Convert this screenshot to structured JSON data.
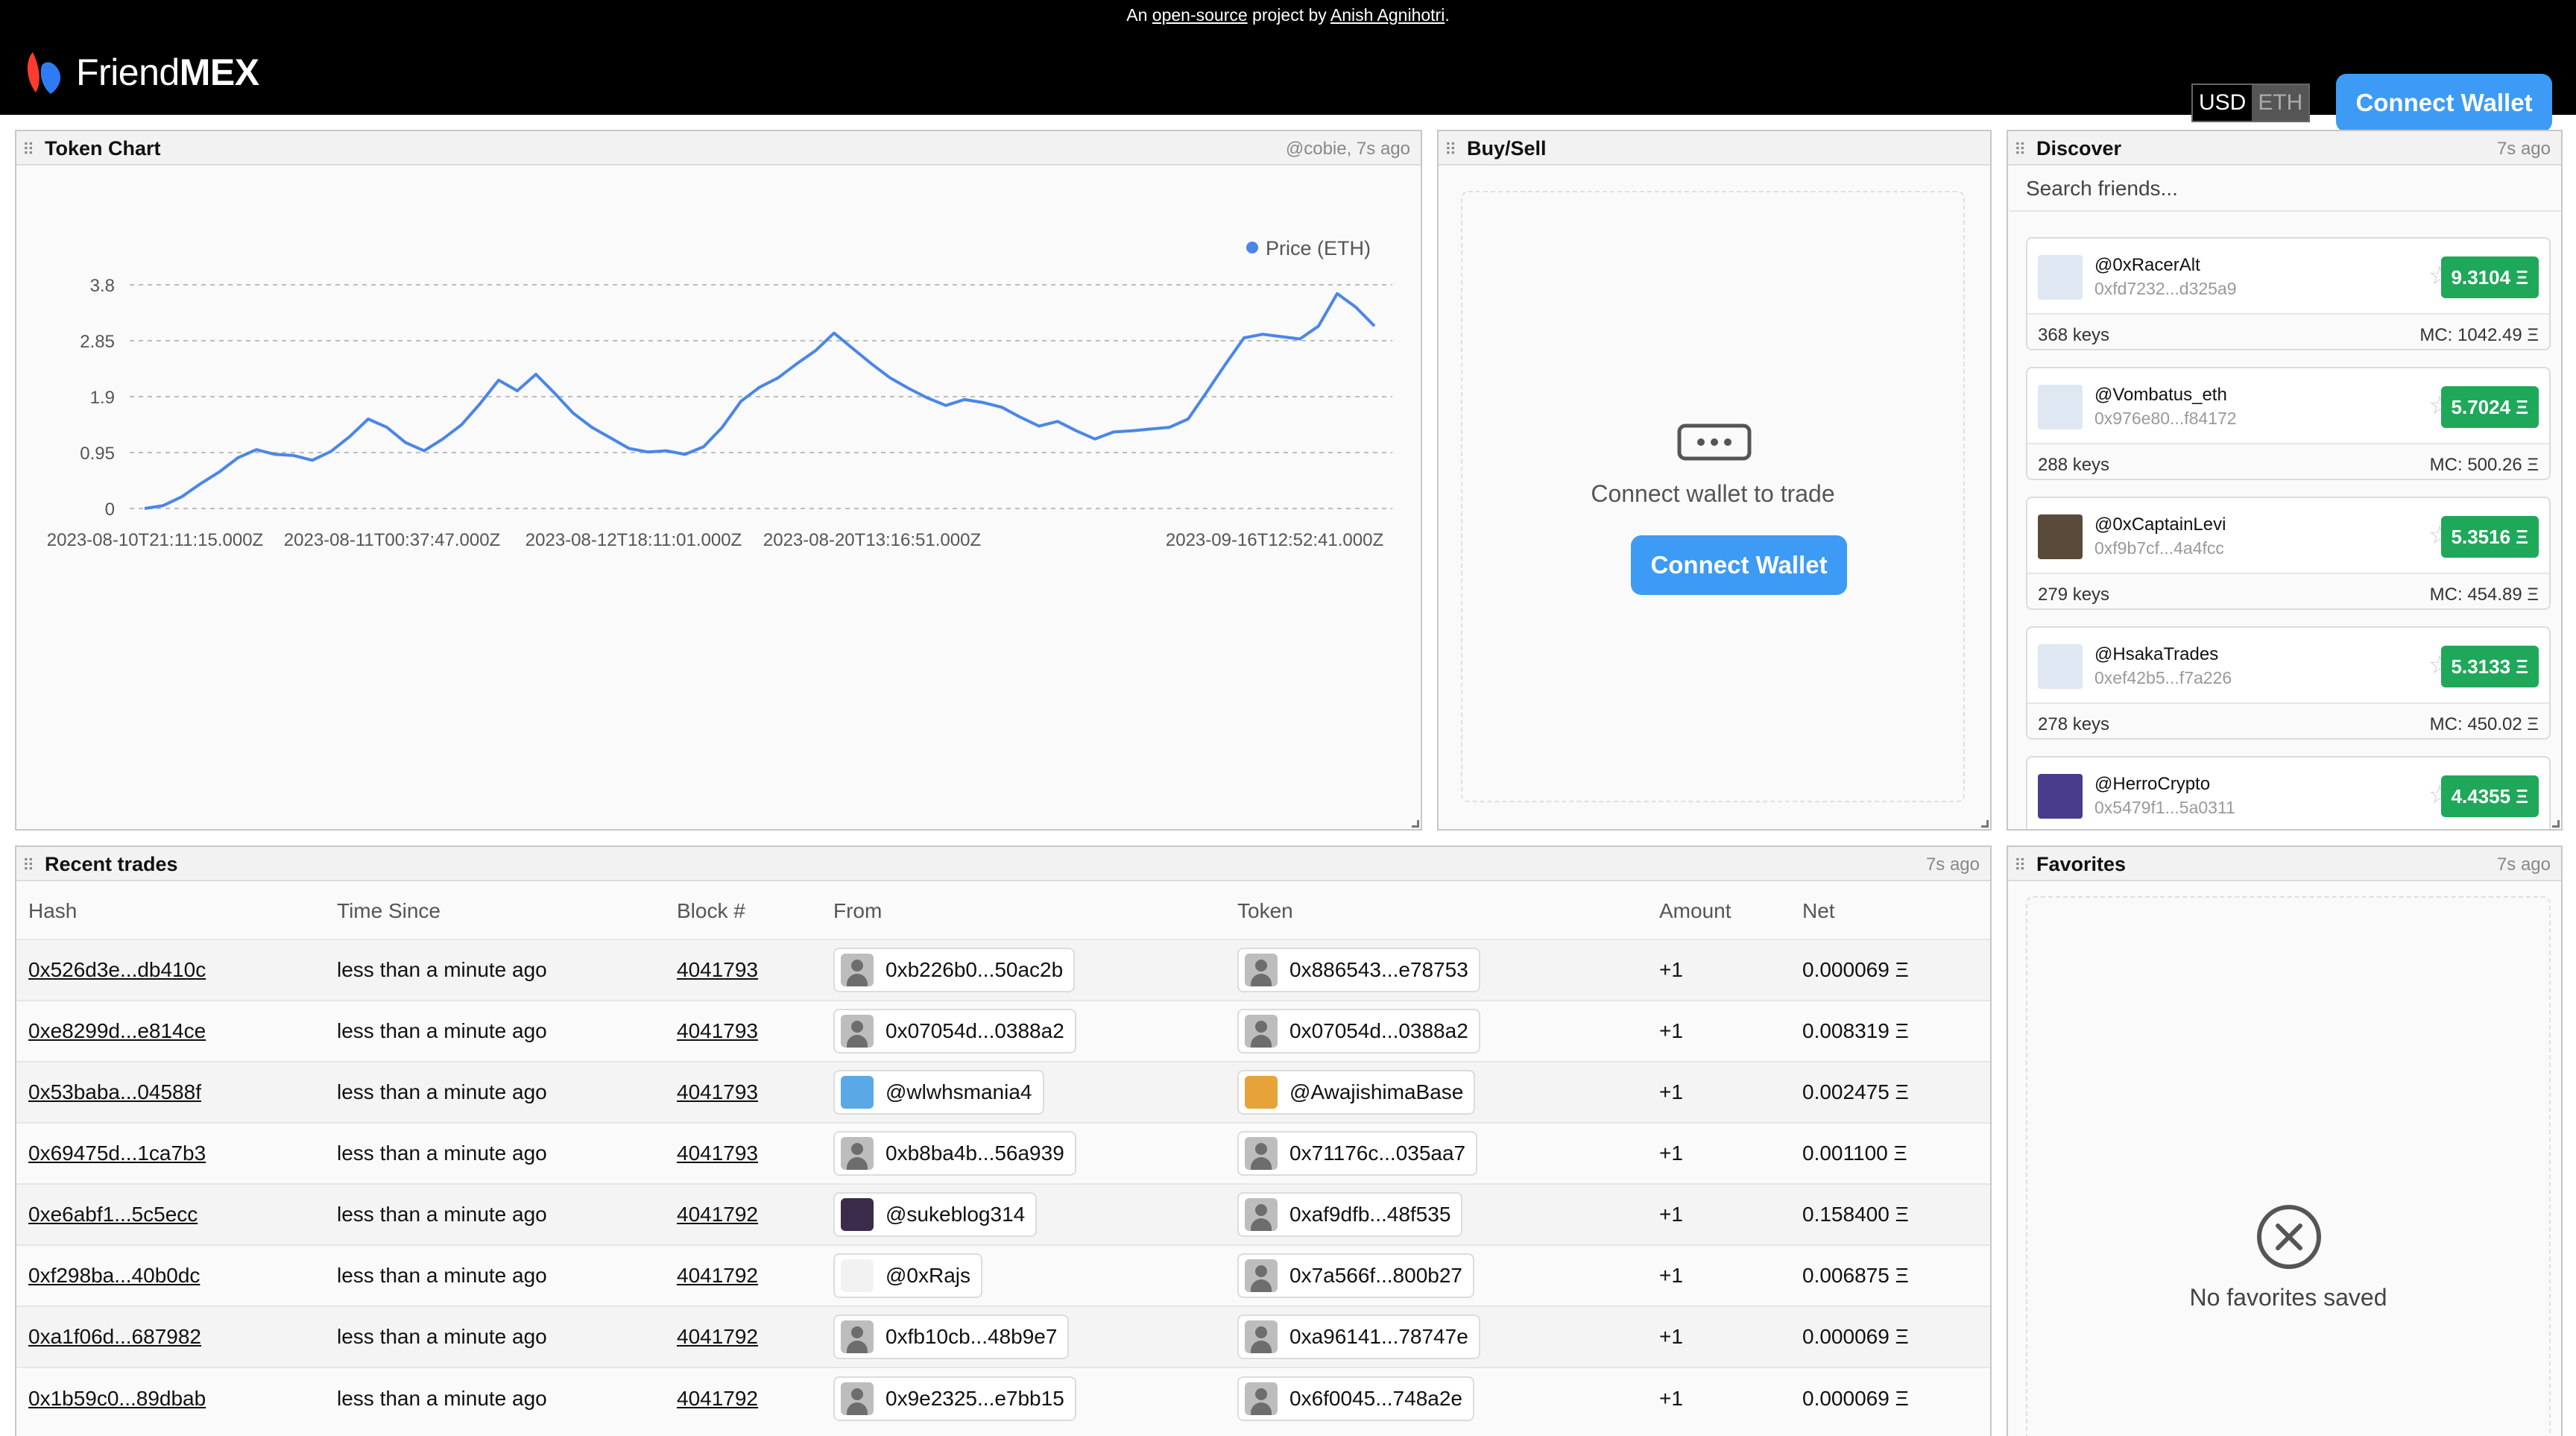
{
  "banner": {
    "prefix": "An ",
    "link1": "open-source",
    "middle": " project by ",
    "link2": "Anish Agnihotri",
    "suffix": "."
  },
  "nav": {
    "logo_light": "Friend",
    "logo_bold": "MEX",
    "currency_usd": "USD",
    "currency_eth": "ETH",
    "connect_label": "Connect Wallet"
  },
  "token_chart": {
    "title": "Token Chart",
    "meta": "@cobie, 7s ago"
  },
  "chart_data": {
    "type": "line",
    "series": [
      {
        "name": "Price (ETH)",
        "color": "#4a86e8",
        "values": [
          0.0,
          0.05,
          0.2,
          0.42,
          0.62,
          0.86,
          1.0,
          0.92,
          0.9,
          0.82,
          0.97,
          1.22,
          1.52,
          1.38,
          1.12,
          0.98,
          1.18,
          1.42,
          1.78,
          2.18,
          2.0,
          2.28,
          1.96,
          1.62,
          1.38,
          1.2,
          1.02,
          0.96,
          0.98,
          0.92,
          1.05,
          1.38,
          1.82,
          2.06,
          2.22,
          2.46,
          2.68,
          2.98,
          2.72,
          2.46,
          2.22,
          2.04,
          1.88,
          1.75,
          1.85,
          1.8,
          1.72,
          1.55,
          1.4,
          1.48,
          1.32,
          1.18,
          1.3,
          1.32,
          1.35,
          1.38,
          1.52,
          1.98,
          2.45,
          2.9,
          2.96,
          2.92,
          2.88,
          3.1,
          3.65,
          3.42,
          3.1
        ]
      }
    ],
    "x_tick_labels": [
      "2023-08-10T21:11:15.000Z",
      "2023-08-11T00:37:47.000Z",
      "2023-08-12T18:11:01.000Z",
      "2023-08-20T13:16:51.000Z",
      "2023-09-16T12:52:41.000Z"
    ],
    "y_ticks": [
      0,
      0.95,
      1.9,
      2.85,
      3.8
    ],
    "y_tick_labels": [
      "0",
      "0.95",
      "1.9",
      "2.85",
      "3.8"
    ],
    "ylim": [
      0,
      3.8
    ],
    "grid": true,
    "legend": "top-right",
    "title": "",
    "xlabel": "",
    "ylabel": ""
  },
  "buysell": {
    "title": "Buy/Sell",
    "message": "Connect wallet to trade",
    "connect_label": "Connect Wallet"
  },
  "discover": {
    "title": "Discover",
    "meta": "7s ago",
    "search_placeholder": "Search friends...",
    "friends": [
      {
        "name": "@0xRacerAlt",
        "address": "0xfd7232...d325a9",
        "price": "9.3104 Ξ",
        "keys": "368 keys",
        "mc": "MC: 1042.49 Ξ",
        "avatar_color": "#dfe7f2"
      },
      {
        "name": "@Vombatus_eth",
        "address": "0x976e80...f84172",
        "price": "5.7024 Ξ",
        "keys": "288 keys",
        "mc": "MC: 500.26 Ξ",
        "avatar_color": "#dfe7f2"
      },
      {
        "name": "@0xCaptainLevi",
        "address": "0xf9b7cf...4a4fcc",
        "price": "5.3516 Ξ",
        "keys": "279 keys",
        "mc": "MC: 454.89 Ξ",
        "avatar_color": "#5a4a3a"
      },
      {
        "name": "@HsakaTrades",
        "address": "0xef42b5...f7a226",
        "price": "5.3133 Ξ",
        "keys": "278 keys",
        "mc": "MC: 450.02 Ξ",
        "avatar_color": "#dfe7f2"
      },
      {
        "name": "@HerroCrypto",
        "address": "0x5479f1...5a0311",
        "price": "4.4355 Ξ",
        "keys": "",
        "mc": "",
        "avatar_color": "#4a3c8c"
      }
    ]
  },
  "trades": {
    "title": "Recent trades",
    "meta": "7s ago",
    "headers": [
      "Hash",
      "Time Since",
      "Block #",
      "From",
      "Token",
      "Amount",
      "Net"
    ],
    "rows": [
      {
        "hash": "0x526d3e...db410c",
        "time": "less than a minute ago",
        "block": "4041793",
        "from": "0xb226b0...50ac2b",
        "from_avatar": "default",
        "token": "0x886543...e78753",
        "token_avatar": "default",
        "amount": "+1",
        "net": "0.000069 Ξ"
      },
      {
        "hash": "0xe8299d...e814ce",
        "time": "less than a minute ago",
        "block": "4041793",
        "from": "0x07054d...0388a2",
        "from_avatar": "default",
        "token": "0x07054d...0388a2",
        "token_avatar": "default",
        "amount": "+1",
        "net": "0.008319 Ξ"
      },
      {
        "hash": "0x53baba...04588f",
        "time": "less than a minute ago",
        "block": "4041793",
        "from": "@wlwhsmania4",
        "from_avatar": "#5aa9e6",
        "token": "@AwajishimaBase",
        "token_avatar": "#e6a33a",
        "amount": "+1",
        "net": "0.002475 Ξ"
      },
      {
        "hash": "0x69475d...1ca7b3",
        "time": "less than a minute ago",
        "block": "4041793",
        "from": "0xb8ba4b...56a939",
        "from_avatar": "default",
        "token": "0x71176c...035aa7",
        "token_avatar": "default",
        "amount": "+1",
        "net": "0.001100 Ξ"
      },
      {
        "hash": "0xe6abf1...5c5ecc",
        "time": "less than a minute ago",
        "block": "4041792",
        "from": "@sukeblog314",
        "from_avatar": "#3a2c4a",
        "token": "0xaf9dfb...48f535",
        "token_avatar": "default",
        "amount": "+1",
        "net": "0.158400 Ξ"
      },
      {
        "hash": "0xf298ba...40b0dc",
        "time": "less than a minute ago",
        "block": "4041792",
        "from": "@0xRajs",
        "from_avatar": "#f2f2f2",
        "token": "0x7a566f...800b27",
        "token_avatar": "default",
        "amount": "+1",
        "net": "0.006875 Ξ"
      },
      {
        "hash": "0xa1f06d...687982",
        "time": "less than a minute ago",
        "block": "4041792",
        "from": "0xfb10cb...48b9e7",
        "from_avatar": "default",
        "token": "0xa96141...78747e",
        "token_avatar": "default",
        "amount": "+1",
        "net": "0.000069 Ξ"
      },
      {
        "hash": "0x1b59c0...89dbab",
        "time": "less than a minute ago",
        "block": "4041792",
        "from": "0x9e2325...e7bb15",
        "from_avatar": "default",
        "token": "0x6f0045...748a2e",
        "token_avatar": "default",
        "amount": "+1",
        "net": "0.000069 Ξ"
      }
    ]
  },
  "favorites": {
    "title": "Favorites",
    "meta": "7s ago",
    "empty_message": "No favorites saved"
  },
  "icons": {
    "logo": "friendmex-logo-icon",
    "wallet": "wallet-icon",
    "star": "star-icon",
    "empty": "close-circle-icon"
  }
}
